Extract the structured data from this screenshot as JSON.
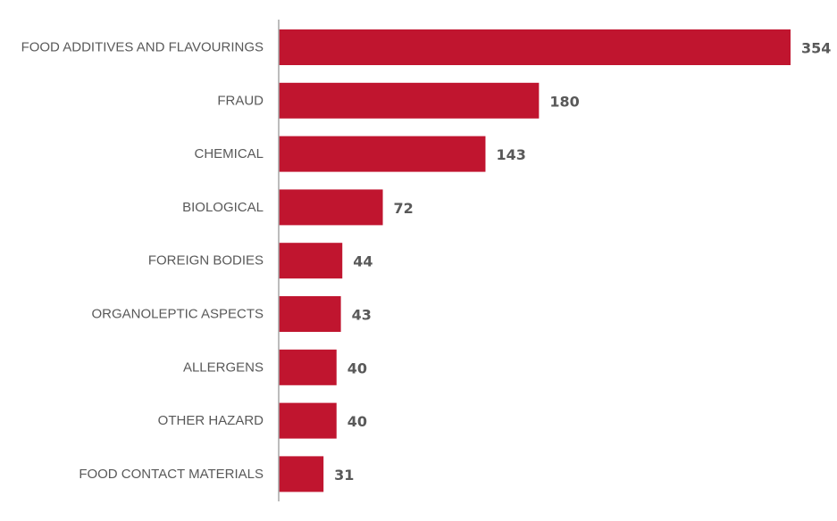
{
  "chart_data": {
    "type": "bar",
    "orientation": "horizontal",
    "categories": [
      "FOOD ADDITIVES AND FLAVOURINGS",
      "FRAUD",
      "CHEMICAL",
      "BIOLOGICAL",
      "FOREIGN BODIES",
      "ORGANOLEPTIC ASPECTS",
      "ALLERGENS",
      "OTHER HAZARD",
      "FOOD CONTACT MATERIALS"
    ],
    "values": [
      354,
      180,
      143,
      72,
      44,
      43,
      40,
      40,
      31
    ],
    "data_labels": [
      "354",
      "180",
      "143",
      "72",
      "44",
      "43",
      "40",
      "40",
      "31"
    ],
    "xlim": [
      0,
      354
    ],
    "grid": false,
    "legend": "none",
    "bar_color": "#c0152f"
  }
}
